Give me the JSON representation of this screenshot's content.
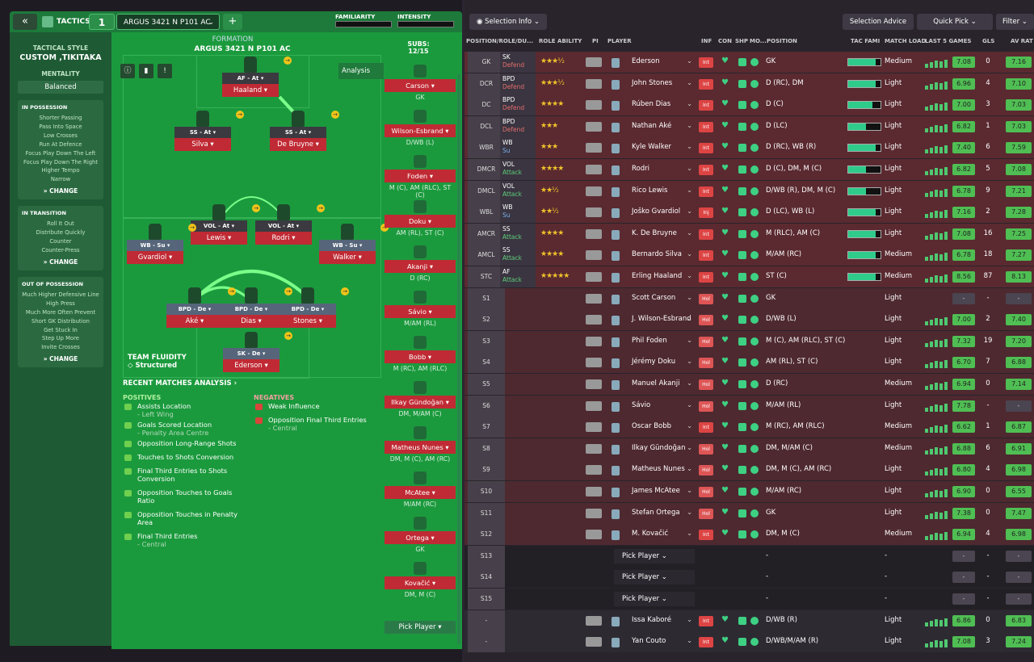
{
  "top": {
    "tactics_label": "TACTICS",
    "slot": "1",
    "tactic_name": "ARGUS 3421 N P101 AC",
    "familiarity": "FAMILIARITY",
    "intensity": "INTENSITY"
  },
  "sidebar": {
    "style_label": "TACTICAL STYLE",
    "style_value": "CUSTOM ,TIKITAKA",
    "mentality_label": "MENTALITY",
    "mentality_value": "Balanced",
    "possession": {
      "title": "IN POSSESSION",
      "items": [
        "Shorter Passing",
        "Pass Into Space",
        "Low Crosses",
        "Run At Defence",
        "Focus Play Down The Left",
        "Focus Play Down The Right",
        "Higher Tempo",
        "Narrow"
      ]
    },
    "transition": {
      "title": "IN TRANSITION",
      "items": [
        "Roll It Out",
        "Distribute Quickly",
        "Counter",
        "Counter-Press"
      ]
    },
    "oop": {
      "title": "OUT OF POSSESSION",
      "items": [
        "Much Higher Defensive Line",
        "High Press",
        "Much More Often Prevent Short GK Distribution",
        "Get Stuck In",
        "Step Up More",
        "Invite Crosses"
      ]
    },
    "change": "CHANGE"
  },
  "formation": {
    "label": "FORMATION",
    "name": "ARGUS 3421 N P101 AC",
    "analysis": "Analysis",
    "roles": [
      {
        "role": "AF",
        "duty": "At",
        "name": "Haaland"
      },
      {
        "role": "SS",
        "duty": "At",
        "name": "Silva"
      },
      {
        "role": "SS",
        "duty": "At",
        "name": "De Bruyne"
      },
      {
        "role": "VOL",
        "duty": "At",
        "name": "Lewis"
      },
      {
        "role": "VOL",
        "duty": "At",
        "name": "Rodri"
      },
      {
        "role": "WB",
        "duty": "Su",
        "name": "Gvardiol"
      },
      {
        "role": "WB",
        "duty": "Su",
        "name": "Walker"
      },
      {
        "role": "BPD",
        "duty": "De",
        "name": "Aké"
      },
      {
        "role": "BPD",
        "duty": "De",
        "name": "Dias"
      },
      {
        "role": "BPD",
        "duty": "De",
        "name": "Stones"
      },
      {
        "role": "SK",
        "duty": "De",
        "name": "Ederson"
      }
    ],
    "fluidity_label": "TEAM FLUIDITY",
    "fluidity_value": "Structured"
  },
  "analysis": {
    "title": "RECENT MATCHES ANALYSIS ›",
    "pos_title": "POSITIVES",
    "neg_title": "NEGATIVES",
    "positives": [
      {
        "text": "Assists Location",
        "sub": "- Left Wing"
      },
      {
        "text": "Goals Scored Location",
        "sub": "- Penalty Area Centre"
      },
      {
        "text": "Opposition Long-Range Shots",
        "sub": ""
      },
      {
        "text": "Touches to Shots Conversion",
        "sub": ""
      },
      {
        "text": "Final Third Entries to Shots Conversion",
        "sub": ""
      },
      {
        "text": "Opposition Touches to Goals Ratio",
        "sub": ""
      },
      {
        "text": "Opposition Touches in Penalty Area",
        "sub": ""
      },
      {
        "text": "Final Third Entries",
        "sub": "- Central"
      }
    ],
    "negatives": [
      {
        "text": "Weak Influence",
        "sub": ""
      },
      {
        "text": "Opposition Final Third Entries",
        "sub": "- Central"
      }
    ]
  },
  "subs": {
    "label": "SUBS:",
    "count": "12/15",
    "pick": "Pick Player",
    "players": [
      {
        "name": "Carson",
        "pos": "GK"
      },
      {
        "name": "Wilson-Esbrand",
        "pos": "D/WB (L)"
      },
      {
        "name": "Foden",
        "pos": "M (C), AM (RLC), ST (C)"
      },
      {
        "name": "Doku",
        "pos": "AM (RL), ST (C)"
      },
      {
        "name": "Akanji",
        "pos": "D (RC)"
      },
      {
        "name": "Sávio",
        "pos": "M/AM (RL)"
      },
      {
        "name": "Bobb",
        "pos": "M (RC), AM (RLC)"
      },
      {
        "name": "Ilkay Gündoğan",
        "pos": "DM, M/AM (C)"
      },
      {
        "name": "Matheus Nunes",
        "pos": "DM, M (C), AM (RC)"
      },
      {
        "name": "McAtee",
        "pos": "M/AM (RC)"
      },
      {
        "name": "Ortega",
        "pos": "GK"
      },
      {
        "name": "Kovačić",
        "pos": "DM, M (C)"
      }
    ]
  },
  "right": {
    "selection_info": "Selection Info",
    "selection_advice": "Selection Advice",
    "quick_pick": "Quick Pick",
    "filter": "Filter",
    "headers": [
      "POSITION/ROLE/DU...",
      "ROLE ABILITY",
      "PI",
      "PLAYER",
      "INF",
      "CON",
      "SHP",
      "MO...",
      "POSITION",
      "TAC FAMI",
      "MATCH LOAD",
      "LAST 5 GAMES",
      "GLS",
      "AV RAT"
    ],
    "pick_player": "Pick Player",
    "rows": [
      {
        "pos": "GK",
        "role": "SK",
        "duty": "Defend",
        "stars": "★★★½",
        "name": "Ederson",
        "inf": "Int",
        "posn": "GK",
        "tac": 0.85,
        "load": "Medium",
        "rating": "7.08",
        "gls": "0",
        "av": "7.16"
      },
      {
        "pos": "DCR",
        "role": "BPD",
        "duty": "Defend",
        "stars": "★★★½",
        "name": "John Stones",
        "inf": "Int",
        "posn": "D (RC), DM",
        "tac": 0.85,
        "load": "Light",
        "rating": "6.96",
        "gls": "4",
        "av": "7.10"
      },
      {
        "pos": "DC",
        "role": "BPD",
        "duty": "Defend",
        "stars": "★★★★",
        "name": "Rúben Dias",
        "inf": "Int",
        "posn": "D (C)",
        "tac": 0.75,
        "load": "Light",
        "rating": "7.00",
        "gls": "3",
        "av": "7.03"
      },
      {
        "pos": "DCL",
        "role": "BPD",
        "duty": "Defend",
        "stars": "★★★",
        "name": "Nathan Aké",
        "inf": "Int",
        "posn": "D (LC)",
        "tac": 0.55,
        "load": "Light",
        "rating": "6.82",
        "gls": "1",
        "av": "7.03"
      },
      {
        "pos": "WBR",
        "role": "WB",
        "duty": "Su",
        "stars": "★★★",
        "name": "Kyle Walker",
        "inf": "Int",
        "posn": "D (RC), WB (R)",
        "tac": 0.85,
        "load": "Light",
        "rating": "7.40",
        "gls": "6",
        "av": "7.59"
      },
      {
        "pos": "DMCR",
        "role": "VOL",
        "duty": "Attack",
        "stars": "★★★★",
        "name": "Rodri",
        "inf": "Int",
        "posn": "D (C), DM, M (C)",
        "tac": 0.55,
        "load": "Light",
        "rating": "6.82",
        "gls": "5",
        "av": "7.08"
      },
      {
        "pos": "DMCL",
        "role": "VOL",
        "duty": "Attack",
        "stars": "★★½",
        "name": "Rico Lewis",
        "inf": "Int",
        "posn": "D/WB (R), DM, M (C)",
        "tac": 0.55,
        "load": "Light",
        "rating": "6.78",
        "gls": "9",
        "av": "7.21"
      },
      {
        "pos": "WBL",
        "role": "WB",
        "duty": "Su",
        "stars": "★★½",
        "name": "Joško Gvardiol",
        "inf": "Inj",
        "posn": "D (LC), WB (L)",
        "tac": 0.85,
        "load": "Light",
        "rating": "7.16",
        "gls": "2",
        "av": "7.28"
      },
      {
        "pos": "AMCR",
        "role": "SS",
        "duty": "Attack",
        "stars": "★★★★",
        "name": "K. De Bruyne",
        "inf": "Int",
        "posn": "M (RLC), AM (C)",
        "tac": 0.85,
        "load": "Light",
        "rating": "7.08",
        "gls": "16",
        "av": "7.25"
      },
      {
        "pos": "AMCL",
        "role": "SS",
        "duty": "Attack",
        "stars": "★★★★",
        "name": "Bernardo Silva",
        "inf": "Int",
        "posn": "M/AM (RC)",
        "tac": 0.85,
        "load": "Medium",
        "rating": "6.78",
        "gls": "18",
        "av": "7.27"
      },
      {
        "pos": "STC",
        "role": "AF",
        "duty": "Attack",
        "stars": "★★★★★",
        "name": "Erling Haaland",
        "inf": "Int",
        "posn": "ST (C)",
        "tac": 0.85,
        "load": "Medium",
        "rating": "8.56",
        "gls": "87",
        "av": "8.13"
      },
      {
        "pos": "S1",
        "role": "",
        "duty": "",
        "stars": "",
        "name": "Scott Carson",
        "inf": "Hol",
        "posn": "GK",
        "tac": 0,
        "load": "Light",
        "rating": "-",
        "gls": "-",
        "av": "-"
      },
      {
        "pos": "S2",
        "role": "",
        "duty": "",
        "stars": "",
        "name": "J. Wilson-Esbrand",
        "inf": "Hol",
        "posn": "D/WB (L)",
        "tac": 0,
        "load": "Light",
        "rating": "7.00",
        "gls": "2",
        "av": "7.40"
      },
      {
        "pos": "S3",
        "role": "",
        "duty": "",
        "stars": "",
        "name": "Phil Foden",
        "inf": "Hol",
        "posn": "M (C), AM (RLC), ST (C)",
        "tac": 0,
        "load": "Light",
        "rating": "7.32",
        "gls": "19",
        "av": "7.20"
      },
      {
        "pos": "S4",
        "role": "",
        "duty": "",
        "stars": "",
        "name": "Jérémy Doku",
        "inf": "Hol",
        "posn": "AM (RL), ST (C)",
        "tac": 0,
        "load": "Light",
        "rating": "6.70",
        "gls": "7",
        "av": "6.88"
      },
      {
        "pos": "S5",
        "role": "",
        "duty": "",
        "stars": "",
        "name": "Manuel Akanji",
        "inf": "Hol",
        "posn": "D (RC)",
        "tac": 0,
        "load": "Medium",
        "rating": "6.94",
        "gls": "0",
        "av": "7.14"
      },
      {
        "pos": "S6",
        "role": "",
        "duty": "",
        "stars": "",
        "name": "Sávio",
        "inf": "Hol",
        "posn": "M/AM (RL)",
        "tac": 0,
        "load": "Light",
        "rating": "7.78",
        "gls": "-",
        "av": "-"
      },
      {
        "pos": "S7",
        "role": "",
        "duty": "",
        "stars": "",
        "name": "Oscar Bobb",
        "inf": "Int",
        "posn": "M (RC), AM (RLC)",
        "tac": 0,
        "load": "Medium",
        "rating": "6.62",
        "gls": "1",
        "av": "6.87"
      },
      {
        "pos": "S8",
        "role": "",
        "duty": "",
        "stars": "",
        "name": "Ilkay Gündoğan",
        "inf": "Hol",
        "posn": "DM, M/AM (C)",
        "tac": 0,
        "load": "Medium",
        "rating": "6.88",
        "gls": "6",
        "av": "6.91"
      },
      {
        "pos": "S9",
        "role": "",
        "duty": "",
        "stars": "",
        "name": "Matheus Nunes",
        "inf": "Hol",
        "posn": "DM, M (C), AM (RC)",
        "tac": 0,
        "load": "Light",
        "rating": "6.80",
        "gls": "4",
        "av": "6.98"
      },
      {
        "pos": "S10",
        "role": "",
        "duty": "",
        "stars": "",
        "name": "James McAtee",
        "inf": "Hol",
        "posn": "M/AM (RC)",
        "tac": 0,
        "load": "Light",
        "rating": "6.90",
        "gls": "0",
        "av": "6.55"
      },
      {
        "pos": "S11",
        "role": "",
        "duty": "",
        "stars": "",
        "name": "Stefan Ortega",
        "inf": "Hol",
        "posn": "GK",
        "tac": 0,
        "load": "Light",
        "rating": "7.38",
        "gls": "0",
        "av": "7.47"
      },
      {
        "pos": "S12",
        "role": "",
        "duty": "",
        "stars": "",
        "name": "M. Kovačić",
        "inf": "Int",
        "posn": "DM, M (C)",
        "tac": 0,
        "load": "Medium",
        "rating": "6.94",
        "gls": "4",
        "av": "6.98"
      },
      {
        "pos": "S13",
        "role": "",
        "duty": "",
        "stars": "",
        "name": "",
        "inf": "",
        "posn": "-",
        "tac": 0,
        "load": "-",
        "rating": "-",
        "gls": "-",
        "av": "-"
      },
      {
        "pos": "S14",
        "role": "",
        "duty": "",
        "stars": "",
        "name": "",
        "inf": "",
        "posn": "-",
        "tac": 0,
        "load": "-",
        "rating": "-",
        "gls": "-",
        "av": "-"
      },
      {
        "pos": "S15",
        "role": "",
        "duty": "",
        "stars": "",
        "name": "",
        "inf": "",
        "posn": "-",
        "tac": 0,
        "load": "-",
        "rating": "-",
        "gls": "-",
        "av": "-"
      },
      {
        "pos": "-",
        "role": "",
        "duty": "",
        "stars": "",
        "name": "Issa Kaboré",
        "inf": "Int",
        "posn": "D/WB (R)",
        "tac": 0,
        "load": "Light",
        "rating": "6.86",
        "gls": "0",
        "av": "6.83"
      },
      {
        "pos": "-",
        "role": "",
        "duty": "",
        "stars": "",
        "name": "Yan Couto",
        "inf": "Int",
        "posn": "D/WB/M/AM (R)",
        "tac": 0,
        "load": "Light",
        "rating": "7.08",
        "gls": "3",
        "av": "7.24"
      }
    ]
  }
}
